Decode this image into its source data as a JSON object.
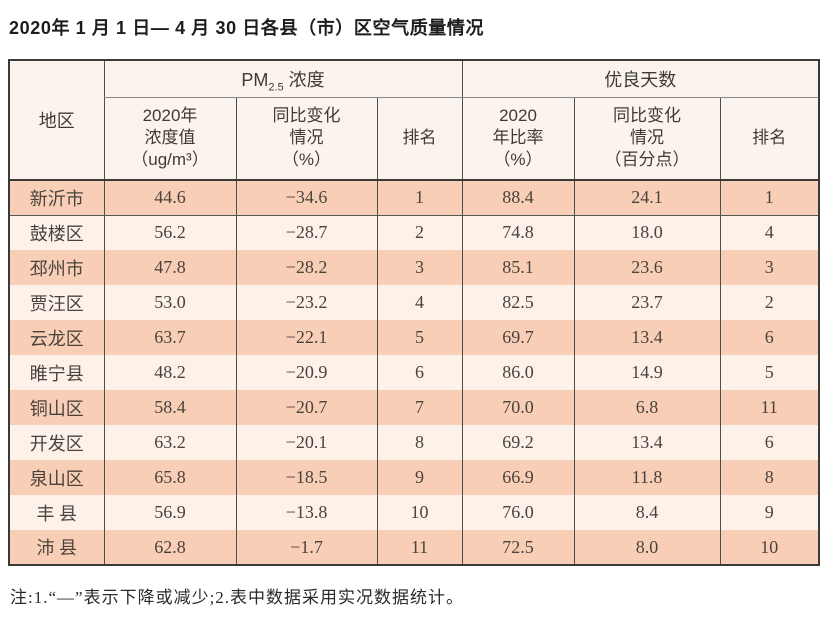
{
  "title": "2020年 1 月 1 日— 4 月 30 日各县（市）区空气质量情况",
  "table": {
    "region_header": "地区",
    "pm_group": {
      "prefix": "PM",
      "sub": "2.5",
      "suffix": " 浓度"
    },
    "good_group": "优良天数",
    "subheaders": [
      "2020年\n浓度值\n（ug/m³）",
      "同比变化\n情况\n（%）",
      "排名",
      "2020\n年比率\n（%）",
      "同比变化\n情况\n（百分点）",
      "排名"
    ],
    "rows": [
      {
        "region": "新沂市",
        "pm_value": "44.6",
        "pm_change": "−34.6",
        "pm_rank": "1",
        "good_rate": "88.4",
        "good_change": "24.1",
        "good_rank": "1"
      },
      {
        "region": "鼓楼区",
        "pm_value": "56.2",
        "pm_change": "−28.7",
        "pm_rank": "2",
        "good_rate": "74.8",
        "good_change": "18.0",
        "good_rank": "4"
      },
      {
        "region": "邳州市",
        "pm_value": "47.8",
        "pm_change": "−28.2",
        "pm_rank": "3",
        "good_rate": "85.1",
        "good_change": "23.6",
        "good_rank": "3"
      },
      {
        "region": "贾汪区",
        "pm_value": "53.0",
        "pm_change": "−23.2",
        "pm_rank": "4",
        "good_rate": "82.5",
        "good_change": "23.7",
        "good_rank": "2"
      },
      {
        "region": "云龙区",
        "pm_value": "63.7",
        "pm_change": "−22.1",
        "pm_rank": "5",
        "good_rate": "69.7",
        "good_change": "13.4",
        "good_rank": "6"
      },
      {
        "region": "睢宁县",
        "pm_value": "48.2",
        "pm_change": "−20.9",
        "pm_rank": "6",
        "good_rate": "86.0",
        "good_change": "14.9",
        "good_rank": "5"
      },
      {
        "region": "铜山区",
        "pm_value": "58.4",
        "pm_change": "−20.7",
        "pm_rank": "7",
        "good_rate": "70.0",
        "good_change": "6.8",
        "good_rank": "11"
      },
      {
        "region": "开发区",
        "pm_value": "63.2",
        "pm_change": "−20.1",
        "pm_rank": "8",
        "good_rate": "69.2",
        "good_change": "13.4",
        "good_rank": "6"
      },
      {
        "region": "泉山区",
        "pm_value": "65.8",
        "pm_change": "−18.5",
        "pm_rank": "9",
        "good_rate": "66.9",
        "good_change": "11.8",
        "good_rank": "8"
      },
      {
        "region": "丰 县",
        "pm_value": "56.9",
        "pm_change": "−13.8",
        "pm_rank": "10",
        "good_rate": "76.0",
        "good_change": "8.4",
        "good_rank": "9"
      },
      {
        "region": "沛 县",
        "pm_value": "62.8",
        "pm_change": "−1.7",
        "pm_rank": "11",
        "good_rate": "72.5",
        "good_change": "8.0",
        "good_rank": "10"
      }
    ]
  },
  "footnote": "注:1.“—”表示下降或减少;2.表中数据采用实况数据统计。"
}
